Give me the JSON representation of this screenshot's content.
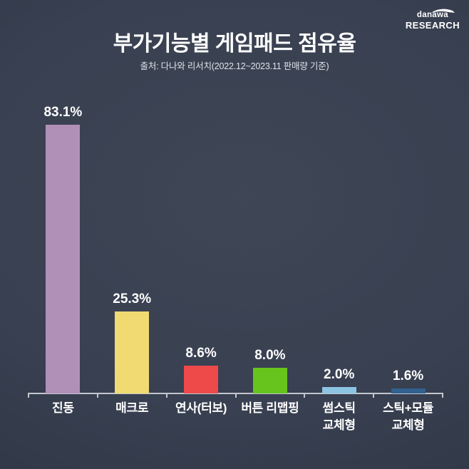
{
  "page": {
    "title": "부가기능별 게임패드 점유율",
    "subtitle": "출처: 다나와 리서치(2022.12~2023.11 판매량 기준)"
  },
  "logo": {
    "line1": "danawa",
    "line2": "RESEARCH"
  },
  "chart_data": {
    "type": "bar",
    "title": "부가기능별 게임패드 점유율",
    "source_note": "출처: 다나와 리서치(2022.12~2023.11 판매량 기준)",
    "categories": [
      "진동",
      "매크로",
      "연사(터보)",
      "버튼 리맵핑",
      "썸스틱\n교체형",
      "스틱+모듈\n교체형"
    ],
    "values": [
      83.1,
      25.3,
      8.6,
      8.0,
      2.0,
      1.6
    ],
    "value_labels": [
      "83.1%",
      "25.3%",
      "8.6%",
      "8.0%",
      "2.0%",
      "1.6%"
    ],
    "bar_colors": [
      "#b190b8",
      "#f1da72",
      "#ee4a4a",
      "#67c41d",
      "#8cc5e3",
      "#31618f"
    ],
    "unit": "%",
    "ylim": [
      0,
      90
    ],
    "grid": false,
    "legend": false,
    "axis_color": "#c3c7ce",
    "value_label_color": "#ffffff",
    "category_label_color": "#ffffff",
    "background": "dark-slate-gradient"
  }
}
